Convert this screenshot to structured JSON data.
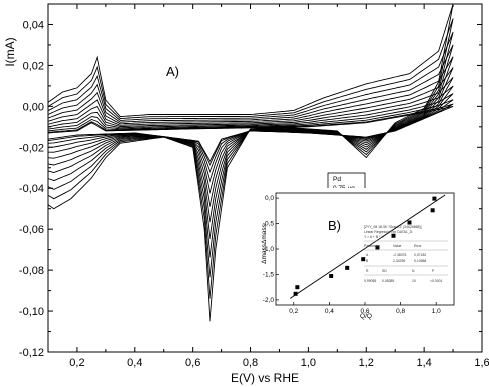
{
  "chart_data": [
    {
      "type": "line",
      "panel_label": "A)",
      "xlabel": "E(V) vs RHE",
      "ylabel": "I(mA)",
      "xlim": [
        0.1,
        1.6
      ],
      "ylim": [
        -0.12,
        0.05
      ],
      "xticks": [
        "0,2",
        "0,4",
        "0,6",
        "0,8",
        "1,0",
        "1,2",
        "1,4",
        "1,6"
      ],
      "yticks": [
        "0,04",
        "0,02",
        "0,00",
        "-0,02",
        "-0,04",
        "-0,06",
        "-0,08",
        "-0,10",
        "-0,12"
      ],
      "grid": false,
      "cycles": 12,
      "deepest_cycle": {
        "anodic": [
          [
            0.1,
            0.002
          ],
          [
            0.15,
            0.007
          ],
          [
            0.2,
            0.009
          ],
          [
            0.25,
            0.016
          ],
          [
            0.27,
            0.024
          ],
          [
            0.3,
            0.003
          ],
          [
            0.35,
            -0.005
          ],
          [
            0.45,
            -0.004
          ],
          [
            0.6,
            -0.004
          ],
          [
            0.8,
            -0.004
          ],
          [
            0.95,
            -0.002
          ],
          [
            1.05,
            0.004
          ],
          [
            1.2,
            0.011
          ],
          [
            1.35,
            0.016
          ],
          [
            1.45,
            0.027
          ],
          [
            1.5,
            0.05
          ]
        ],
        "cathodic": [
          [
            1.5,
            0.05
          ],
          [
            1.45,
            0.012
          ],
          [
            1.4,
            -0.001
          ],
          [
            1.3,
            -0.008
          ],
          [
            1.2,
            -0.025
          ],
          [
            1.1,
            -0.012
          ],
          [
            1.0,
            -0.011
          ],
          [
            0.9,
            -0.01
          ],
          [
            0.8,
            -0.011
          ],
          [
            0.72,
            -0.03
          ],
          [
            0.68,
            -0.07
          ],
          [
            0.66,
            -0.105
          ],
          [
            0.64,
            -0.06
          ],
          [
            0.6,
            -0.02
          ],
          [
            0.5,
            -0.015
          ],
          [
            0.35,
            -0.018
          ],
          [
            0.3,
            -0.025
          ],
          [
            0.25,
            -0.035
          ],
          [
            0.18,
            -0.045
          ],
          [
            0.12,
            -0.05
          ],
          [
            0.1,
            -0.048
          ],
          [
            0.1,
            0.002
          ]
        ]
      },
      "shallowest_cycle": {
        "anodic": [
          [
            0.1,
            -0.013
          ],
          [
            0.2,
            -0.012
          ],
          [
            0.25,
            -0.008
          ],
          [
            0.3,
            -0.012
          ],
          [
            0.6,
            -0.011
          ],
          [
            1.0,
            -0.01
          ],
          [
            1.2,
            -0.008
          ],
          [
            1.4,
            -0.003
          ],
          [
            1.5,
            0.0
          ]
        ],
        "cathodic": [
          [
            1.5,
            0.0
          ],
          [
            1.3,
            -0.012
          ],
          [
            1.2,
            -0.015
          ],
          [
            1.0,
            -0.013
          ],
          [
            0.8,
            -0.012
          ],
          [
            0.7,
            -0.016
          ],
          [
            0.66,
            -0.027
          ],
          [
            0.62,
            -0.017
          ],
          [
            0.4,
            -0.013
          ],
          [
            0.2,
            -0.014
          ],
          [
            0.1,
            -0.016
          ],
          [
            0.1,
            -0.013
          ]
        ]
      }
    },
    {
      "type": "scatter",
      "panel_label": "B)",
      "xlabel": "Q/Q",
      "ylabel": "ΔmassΔmass",
      "xlim": [
        0.1,
        1.1
      ],
      "ylim": [
        -2.1,
        0.1
      ],
      "xticks": [
        "0,2",
        "0,4",
        "0,6",
        "0,8",
        "1,0"
      ],
      "yticks": [
        "0,0",
        "-0,5",
        "-1,0",
        "-1,5",
        "-2,0"
      ],
      "x": [
        0.21,
        0.22,
        0.41,
        0.5,
        0.59,
        0.67,
        0.76,
        0.85,
        0.98,
        0.99
      ],
      "y": [
        -1.88,
        -1.75,
        -1.53,
        -1.37,
        -1.2,
        -0.97,
        -0.74,
        -0.48,
        -0.24,
        -0.01
      ],
      "fit_line": {
        "x": [
          0.18,
          1.05
        ],
        "y": [
          -1.97,
          0.06
        ]
      },
      "annotation": {
        "header": [
          "[ZYY_08 18:35 \"/Graph1\" (24626868)]",
          "Linear Regression for DATA1_D:",
          "Y = A + B * X"
        ],
        "table": [
          [
            "Parameter",
            "Value",
            "Error"
          ],
          [
            "A",
            "-2,38376",
            "0,07182"
          ],
          [
            "B",
            "2,34295",
            "0,10588"
          ],
          [
            "R",
            "SD",
            "N",
            "P"
          ],
          [
            "0,99055",
            "0,08389",
            "10",
            "<0.0001"
          ]
        ]
      }
    }
  ],
  "legend_box": {
    "line1": "Pd",
    "line2": "0,75 µg"
  }
}
